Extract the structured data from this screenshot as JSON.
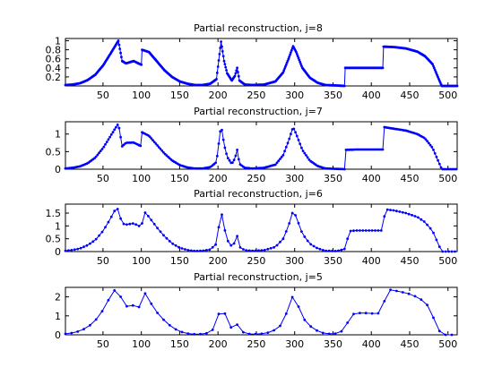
{
  "colors": {
    "series": "#0000ff",
    "axis": "#000000",
    "background": "#ffffff"
  },
  "chart_data": [
    {
      "type": "line",
      "title": "Partial reconstruction, j=8",
      "xlim": [
        1,
        512
      ],
      "ylim": [
        0,
        1.05
      ],
      "xticks": [
        50,
        100,
        150,
        200,
        250,
        300,
        350,
        400,
        450,
        500
      ],
      "yticks": [
        0.2,
        0.4,
        0.6,
        0.8,
        1
      ],
      "ytick_labels": [
        "0.2",
        "0.4",
        "0.6",
        "0.8",
        "1"
      ],
      "marker": "dot",
      "series": [
        {
          "keypoints": [
            [
              1,
              0.02
            ],
            [
              10,
              0.03
            ],
            [
              20,
              0.06
            ],
            [
              30,
              0.13
            ],
            [
              40,
              0.25
            ],
            [
              50,
              0.45
            ],
            [
              60,
              0.72
            ],
            [
              70,
              1.0
            ],
            [
              75,
              0.55
            ],
            [
              80,
              0.5
            ],
            [
              90,
              0.55
            ],
            [
              100,
              0.47
            ],
            [
              101,
              0.8
            ],
            [
              110,
              0.75
            ],
            [
              120,
              0.55
            ],
            [
              130,
              0.35
            ],
            [
              140,
              0.2
            ],
            [
              150,
              0.1
            ],
            [
              160,
              0.05
            ],
            [
              170,
              0.02
            ],
            [
              180,
              0.02
            ],
            [
              190,
              0.05
            ],
            [
              198,
              0.15
            ],
            [
              204,
              0.98
            ],
            [
              208,
              0.55
            ],
            [
              212,
              0.28
            ],
            [
              218,
              0.12
            ],
            [
              222,
              0.22
            ],
            [
              225,
              0.4
            ],
            [
              228,
              0.12
            ],
            [
              235,
              0.03
            ],
            [
              245,
              0.02
            ],
            [
              260,
              0.03
            ],
            [
              275,
              0.1
            ],
            [
              285,
              0.3
            ],
            [
              292,
              0.6
            ],
            [
              298,
              0.88
            ],
            [
              302,
              0.75
            ],
            [
              310,
              0.4
            ],
            [
              320,
              0.18
            ],
            [
              330,
              0.07
            ],
            [
              340,
              0.02
            ],
            [
              355,
              0.01
            ],
            [
              365,
              0.0
            ],
            [
              366,
              0.4
            ],
            [
              380,
              0.4
            ],
            [
              400,
              0.4
            ],
            [
              415,
              0.4
            ],
            [
              416,
              0.87
            ],
            [
              430,
              0.86
            ],
            [
              445,
              0.83
            ],
            [
              460,
              0.76
            ],
            [
              470,
              0.66
            ],
            [
              480,
              0.48
            ],
            [
              488,
              0.15
            ],
            [
              492,
              0.0
            ],
            [
              500,
              0.0
            ],
            [
              512,
              0.0
            ]
          ],
          "step": 1
        }
      ]
    },
    {
      "type": "line",
      "title": "Partial reconstruction, j=7",
      "xlim": [
        1,
        512
      ],
      "ylim": [
        0,
        1.35
      ],
      "xticks": [
        50,
        100,
        150,
        200,
        250,
        300,
        350,
        400,
        450,
        500
      ],
      "yticks": [
        0,
        0.5,
        1
      ],
      "ytick_labels": [
        "0",
        "0.5",
        "1"
      ],
      "marker": "dot",
      "series": [
        {
          "keypoints": [
            [
              1,
              0.02
            ],
            [
              10,
              0.04
            ],
            [
              20,
              0.08
            ],
            [
              30,
              0.17
            ],
            [
              40,
              0.33
            ],
            [
              50,
              0.6
            ],
            [
              60,
              0.95
            ],
            [
              70,
              1.3
            ],
            [
              75,
              0.65
            ],
            [
              80,
              0.75
            ],
            [
              90,
              0.76
            ],
            [
              100,
              0.65
            ],
            [
              101,
              1.05
            ],
            [
              110,
              0.95
            ],
            [
              120,
              0.7
            ],
            [
              130,
              0.45
            ],
            [
              140,
              0.25
            ],
            [
              150,
              0.12
            ],
            [
              160,
              0.05
            ],
            [
              170,
              0.02
            ],
            [
              180,
              0.02
            ],
            [
              190,
              0.06
            ],
            [
              198,
              0.2
            ],
            [
              204,
              1.25
            ],
            [
              208,
              0.7
            ],
            [
              212,
              0.35
            ],
            [
              218,
              0.15
            ],
            [
              222,
              0.3
            ],
            [
              225,
              0.55
            ],
            [
              228,
              0.15
            ],
            [
              235,
              0.04
            ],
            [
              245,
              0.02
            ],
            [
              260,
              0.04
            ],
            [
              275,
              0.13
            ],
            [
              285,
              0.4
            ],
            [
              292,
              0.8
            ],
            [
              298,
              1.2
            ],
            [
              302,
              1.0
            ],
            [
              310,
              0.55
            ],
            [
              320,
              0.24
            ],
            [
              330,
              0.09
            ],
            [
              340,
              0.02
            ],
            [
              355,
              0.01
            ],
            [
              365,
              0.0
            ],
            [
              366,
              0.55
            ],
            [
              380,
              0.56
            ],
            [
              400,
              0.56
            ],
            [
              415,
              0.56
            ],
            [
              416,
              1.2
            ],
            [
              430,
              1.15
            ],
            [
              445,
              1.1
            ],
            [
              460,
              1.0
            ],
            [
              470,
              0.88
            ],
            [
              480,
              0.6
            ],
            [
              488,
              0.2
            ],
            [
              492,
              0.0
            ],
            [
              500,
              0.0
            ],
            [
              512,
              0.0
            ]
          ],
          "step": 2
        }
      ]
    },
    {
      "type": "line",
      "title": "Partial reconstruction, j=6",
      "xlim": [
        1,
        512
      ],
      "ylim": [
        0,
        1.85
      ],
      "xticks": [
        50,
        100,
        150,
        200,
        250,
        300,
        350,
        400,
        450,
        500
      ],
      "yticks": [
        0,
        0.5,
        1,
        1.5
      ],
      "ytick_labels": [
        "0",
        "0.5",
        "1",
        "1.5"
      ],
      "marker": "dot",
      "series": [
        {
          "keypoints": [
            [
              1,
              0.03
            ],
            [
              10,
              0.06
            ],
            [
              20,
              0.12
            ],
            [
              30,
              0.25
            ],
            [
              40,
              0.45
            ],
            [
              50,
              0.8
            ],
            [
              60,
              1.3
            ],
            [
              68,
              1.75
            ],
            [
              75,
              1.1
            ],
            [
              80,
              1.05
            ],
            [
              90,
              1.1
            ],
            [
              100,
              0.95
            ],
            [
              104,
              1.55
            ],
            [
              110,
              1.35
            ],
            [
              120,
              0.95
            ],
            [
              130,
              0.6
            ],
            [
              140,
              0.32
            ],
            [
              150,
              0.15
            ],
            [
              160,
              0.06
            ],
            [
              170,
              0.02
            ],
            [
              180,
              0.03
            ],
            [
              190,
              0.08
            ],
            [
              198,
              0.3
            ],
            [
              204,
              1.6
            ],
            [
              208,
              0.95
            ],
            [
              212,
              0.45
            ],
            [
              218,
              0.2
            ],
            [
              222,
              0.35
            ],
            [
              225,
              0.6
            ],
            [
              228,
              0.18
            ],
            [
              235,
              0.05
            ],
            [
              245,
              0.03
            ],
            [
              260,
              0.05
            ],
            [
              275,
              0.18
            ],
            [
              285,
              0.5
            ],
            [
              292,
              1.0
            ],
            [
              298,
              1.6
            ],
            [
              302,
              1.35
            ],
            [
              310,
              0.7
            ],
            [
              320,
              0.3
            ],
            [
              330,
              0.12
            ],
            [
              340,
              0.03
            ],
            [
              355,
              0.02
            ],
            [
              365,
              0.1
            ],
            [
              372,
              0.8
            ],
            [
              380,
              0.82
            ],
            [
              400,
              0.82
            ],
            [
              415,
              0.82
            ],
            [
              418,
              1.65
            ],
            [
              430,
              1.6
            ],
            [
              445,
              1.5
            ],
            [
              460,
              1.35
            ],
            [
              470,
              1.15
            ],
            [
              480,
              0.8
            ],
            [
              488,
              0.25
            ],
            [
              492,
              0.0
            ],
            [
              500,
              0.0
            ],
            [
              512,
              0.0
            ]
          ],
          "step": 4
        }
      ]
    },
    {
      "type": "line",
      "title": "Partial reconstruction, j=5",
      "xlim": [
        1,
        512
      ],
      "ylim": [
        0,
        2.5
      ],
      "xticks": [
        50,
        100,
        150,
        200,
        250,
        300,
        350,
        400,
        450,
        500
      ],
      "yticks": [
        0,
        1,
        2
      ],
      "ytick_labels": [
        "0",
        "1",
        "2"
      ],
      "marker": "dot",
      "series": [
        {
          "keypoints": [
            [
              1,
              0.05
            ],
            [
              10,
              0.1
            ],
            [
              20,
              0.2
            ],
            [
              30,
              0.4
            ],
            [
              40,
              0.75
            ],
            [
              50,
              1.3
            ],
            [
              58,
              1.9
            ],
            [
              66,
              2.4
            ],
            [
              74,
              1.95
            ],
            [
              80,
              1.5
            ],
            [
              90,
              1.55
            ],
            [
              98,
              1.45
            ],
            [
              104,
              2.25
            ],
            [
              112,
              1.7
            ],
            [
              120,
              1.2
            ],
            [
              130,
              0.75
            ],
            [
              140,
              0.4
            ],
            [
              150,
              0.18
            ],
            [
              160,
              0.07
            ],
            [
              170,
              0.03
            ],
            [
              180,
              0.04
            ],
            [
              190,
              0.12
            ],
            [
              198,
              0.5
            ],
            [
              204,
              1.7
            ],
            [
              210,
              1.0
            ],
            [
              216,
              0.4
            ],
            [
              222,
              0.35
            ],
            [
              226,
              0.6
            ],
            [
              232,
              0.15
            ],
            [
              240,
              0.05
            ],
            [
              255,
              0.04
            ],
            [
              270,
              0.15
            ],
            [
              282,
              0.5
            ],
            [
              290,
              1.2
            ],
            [
              298,
              2.1
            ],
            [
              306,
              1.4
            ],
            [
              314,
              0.7
            ],
            [
              322,
              0.4
            ],
            [
              332,
              0.15
            ],
            [
              342,
              0.05
            ],
            [
              352,
              0.05
            ],
            [
              362,
              0.2
            ],
            [
              370,
              0.7
            ],
            [
              378,
              1.15
            ],
            [
              390,
              1.15
            ],
            [
              405,
              1.12
            ],
            [
              414,
              1.15
            ],
            [
              420,
              2.4
            ],
            [
              435,
              2.3
            ],
            [
              450,
              2.15
            ],
            [
              462,
              1.95
            ],
            [
              472,
              1.65
            ],
            [
              480,
              1.0
            ],
            [
              486,
              0.4
            ],
            [
              492,
              0.0
            ],
            [
              500,
              0.0
            ],
            [
              512,
              0.0
            ]
          ],
          "step": 8
        }
      ]
    }
  ]
}
